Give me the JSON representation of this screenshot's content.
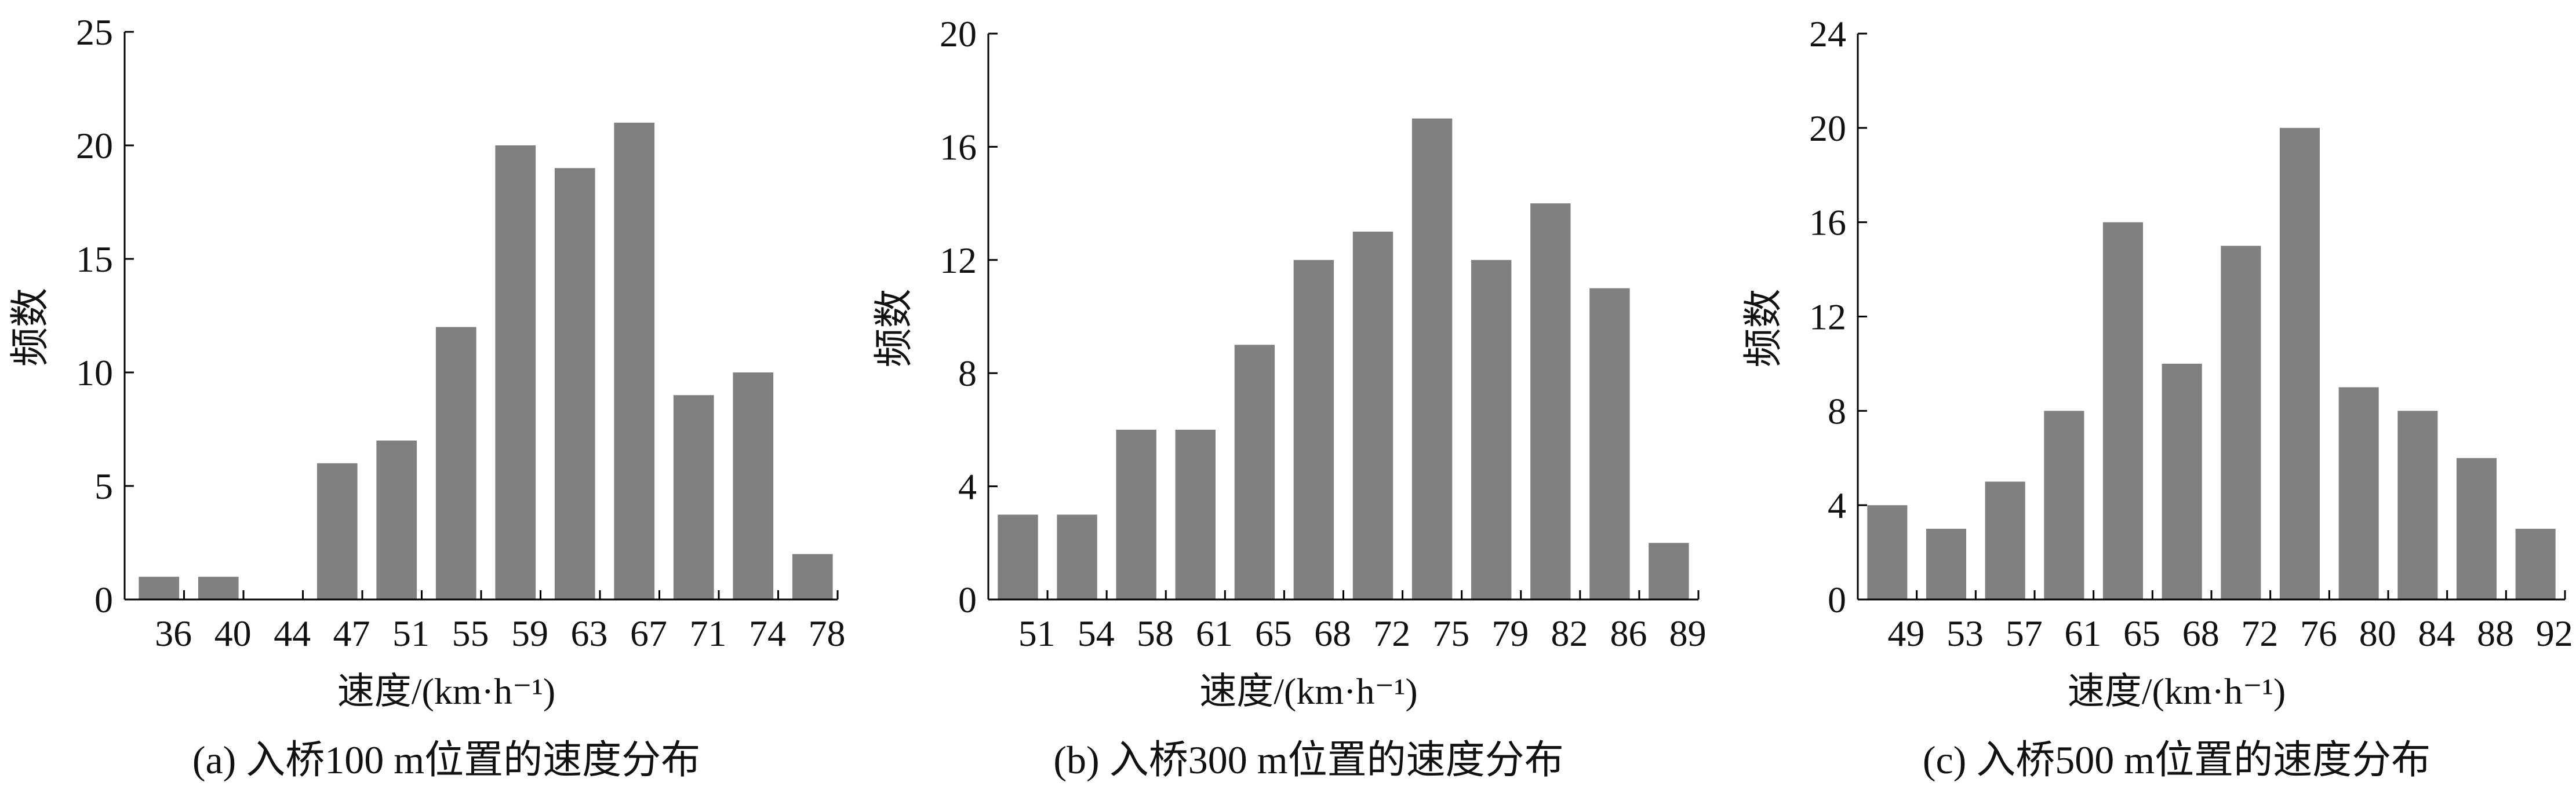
{
  "chart_data": [
    {
      "type": "bar",
      "caption": "(a) 入桥100 m位置的速度分布",
      "xlabel": "速度/(km·h⁻¹)",
      "ylabel": "频数",
      "x_ticks": [
        "36",
        "40",
        "44",
        "47",
        "51",
        "55",
        "59",
        "63",
        "67",
        "71",
        "74",
        "78"
      ],
      "values": [
        1,
        1,
        0,
        6,
        7,
        12,
        20,
        19,
        21,
        9,
        10,
        2
      ],
      "ylim": [
        0,
        25
      ],
      "y_ticks": [
        0,
        5,
        10,
        15,
        20,
        25
      ],
      "bar_color": "#808080",
      "grid": false
    },
    {
      "type": "bar",
      "caption": "(b) 入桥300 m位置的速度分布",
      "xlabel": "速度/(km·h⁻¹)",
      "ylabel": "频数",
      "x_ticks": [
        "51",
        "54",
        "58",
        "61",
        "65",
        "68",
        "72",
        "75",
        "79",
        "82",
        "86",
        "89"
      ],
      "values": [
        3,
        3,
        6,
        6,
        9,
        12,
        13,
        17,
        12,
        14,
        11,
        2
      ],
      "ylim": [
        0,
        20
      ],
      "y_ticks": [
        0,
        4,
        8,
        12,
        16,
        20
      ],
      "bar_color": "#808080",
      "grid": false
    },
    {
      "type": "bar",
      "caption": "(c) 入桥500 m位置的速度分布",
      "xlabel": "速度/(km·h⁻¹)",
      "ylabel": "频数",
      "x_ticks": [
        "49",
        "53",
        "57",
        "61",
        "65",
        "68",
        "72",
        "76",
        "80",
        "84",
        "88",
        "92"
      ],
      "values": [
        4,
        3,
        5,
        8,
        16,
        10,
        15,
        20,
        9,
        8,
        6,
        3
      ],
      "ylim": [
        0,
        24
      ],
      "y_ticks": [
        0,
        4,
        8,
        12,
        16,
        20,
        24
      ],
      "bar_color": "#808080",
      "grid": false
    }
  ]
}
